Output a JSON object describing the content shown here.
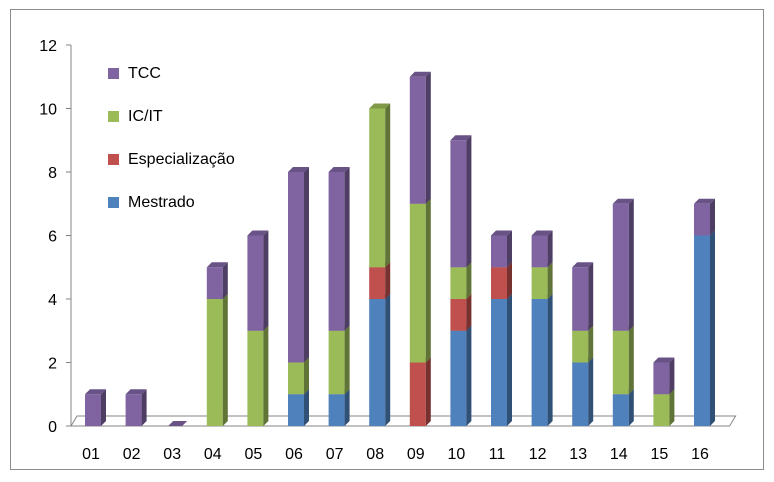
{
  "chart_data": {
    "type": "bar",
    "stacked": true,
    "style": "3d",
    "categories": [
      "01",
      "02",
      "03",
      "04",
      "05",
      "06",
      "07",
      "08",
      "09",
      "10",
      "11",
      "12",
      "13",
      "14",
      "15",
      "16"
    ],
    "ylim": [
      0,
      12
    ],
    "yticks": [
      "0",
      "2",
      "4",
      "6",
      "8",
      "10",
      "12"
    ],
    "grid": false,
    "legend_position": "top-left",
    "series": [
      {
        "name": "Mestrado",
        "color": "#4f81bd",
        "values": [
          0,
          0,
          0,
          0,
          0,
          1,
          1,
          4,
          0,
          3,
          4,
          4,
          2,
          1,
          0,
          6
        ]
      },
      {
        "name": "Especialização",
        "color": "#c0504d",
        "values": [
          0,
          0,
          0,
          0,
          0,
          0,
          0,
          1,
          2,
          1,
          1,
          0,
          0,
          0,
          0,
          0
        ]
      },
      {
        "name": "IC/IT",
        "color": "#9bbb59",
        "values": [
          0,
          0,
          0,
          4,
          3,
          1,
          2,
          5,
          5,
          1,
          0,
          1,
          1,
          2,
          1,
          0
        ]
      },
      {
        "name": "TCC",
        "color": "#8064a2",
        "values": [
          1,
          1,
          0,
          1,
          3,
          6,
          5,
          0,
          4,
          4,
          1,
          1,
          2,
          4,
          1,
          1
        ]
      }
    ],
    "legend_order": [
      "TCC",
      "IC/IT",
      "Especialização",
      "Mestrado"
    ]
  }
}
